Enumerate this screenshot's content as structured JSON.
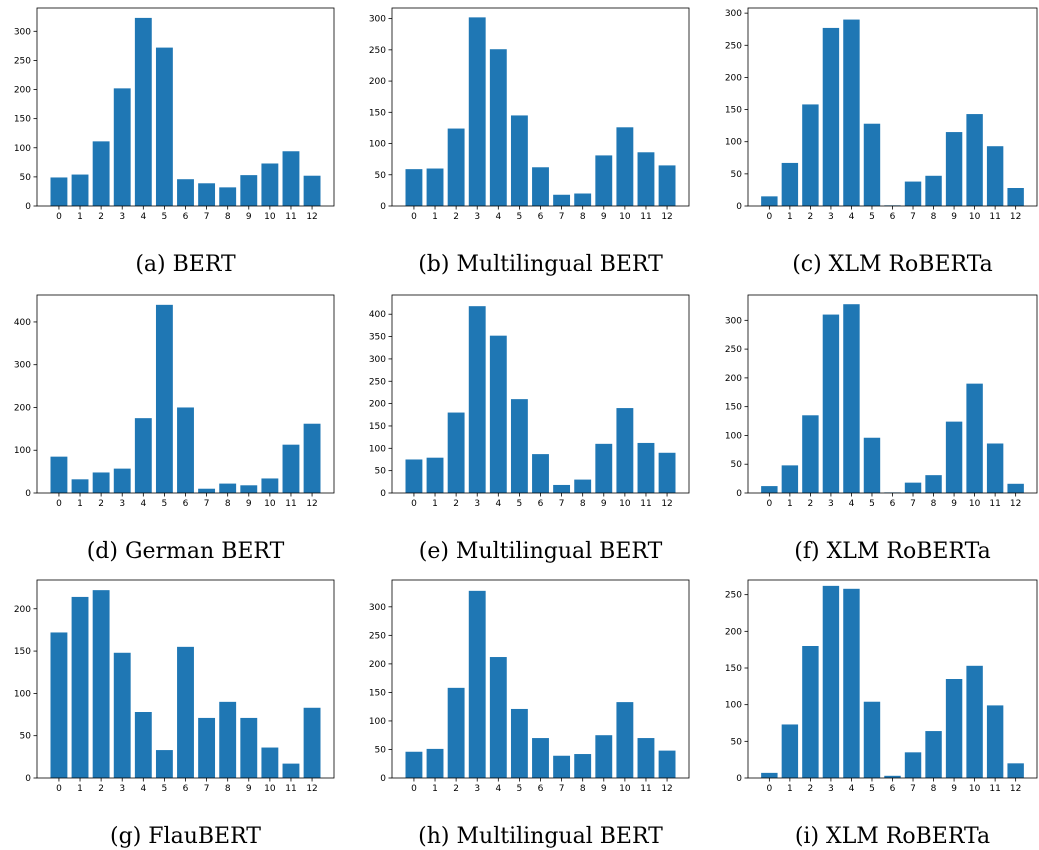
{
  "chart_data": [
    {
      "type": "bar",
      "caption": "(a) BERT",
      "color": "#1f77b4",
      "categories": [
        "0",
        "1",
        "2",
        "3",
        "4",
        "5",
        "6",
        "7",
        "8",
        "9",
        "10",
        "11",
        "12"
      ],
      "values": [
        49,
        54,
        111,
        202,
        323,
        272,
        46,
        39,
        32,
        53,
        73,
        94,
        52
      ],
      "ylim": [
        0,
        340
      ],
      "yticks": [
        0,
        50,
        100,
        150,
        200,
        250,
        300
      ]
    },
    {
      "type": "bar",
      "caption": "(b) Multilingual BERT",
      "color": "#1f77b4",
      "categories": [
        "0",
        "1",
        "2",
        "3",
        "4",
        "5",
        "6",
        "7",
        "8",
        "9",
        "10",
        "11",
        "12"
      ],
      "values": [
        59,
        60,
        124,
        302,
        251,
        145,
        62,
        18,
        20,
        81,
        126,
        86,
        65
      ],
      "ylim": [
        0,
        317
      ],
      "yticks": [
        0,
        50,
        100,
        150,
        200,
        250,
        300
      ]
    },
    {
      "type": "bar",
      "caption": "(c) XLM RoBERTa",
      "color": "#1f77b4",
      "categories": [
        "0",
        "1",
        "2",
        "3",
        "4",
        "5",
        "6",
        "7",
        "8",
        "9",
        "10",
        "11",
        "12"
      ],
      "values": [
        15,
        67,
        158,
        277,
        290,
        128,
        1,
        38,
        47,
        115,
        143,
        93,
        28
      ],
      "ylim": [
        0,
        308
      ],
      "yticks": [
        0,
        50,
        100,
        150,
        200,
        250,
        300
      ]
    },
    {
      "type": "bar",
      "caption": "(d) German BERT",
      "color": "#1f77b4",
      "categories": [
        "0",
        "1",
        "2",
        "3",
        "4",
        "5",
        "6",
        "7",
        "8",
        "9",
        "10",
        "11",
        "12"
      ],
      "values": [
        85,
        32,
        48,
        57,
        175,
        440,
        200,
        10,
        22,
        18,
        34,
        113,
        162
      ],
      "ylim": [
        0,
        463
      ],
      "yticks": [
        0,
        100,
        200,
        300,
        400
      ]
    },
    {
      "type": "bar",
      "caption": "(e) Multilingual BERT",
      "color": "#1f77b4",
      "categories": [
        "0",
        "1",
        "2",
        "3",
        "4",
        "5",
        "6",
        "7",
        "8",
        "9",
        "10",
        "11",
        "12"
      ],
      "values": [
        75,
        79,
        180,
        418,
        352,
        210,
        87,
        18,
        30,
        110,
        190,
        112,
        90
      ],
      "ylim": [
        0,
        443
      ],
      "yticks": [
        0,
        50,
        100,
        150,
        200,
        250,
        300,
        350,
        400
      ]
    },
    {
      "type": "bar",
      "caption": "(f) XLM RoBERTa",
      "color": "#1f77b4",
      "categories": [
        "0",
        "1",
        "2",
        "3",
        "4",
        "5",
        "6",
        "7",
        "8",
        "9",
        "10",
        "11",
        "12"
      ],
      "values": [
        12,
        48,
        135,
        310,
        328,
        96,
        1,
        18,
        31,
        124,
        190,
        86,
        16
      ],
      "ylim": [
        0,
        344
      ],
      "yticks": [
        0,
        50,
        100,
        150,
        200,
        250,
        300
      ]
    },
    {
      "type": "bar",
      "caption": "(g) FlauBERT",
      "color": "#1f77b4",
      "categories": [
        "0",
        "1",
        "2",
        "3",
        "4",
        "5",
        "6",
        "7",
        "8",
        "9",
        "10",
        "11",
        "12"
      ],
      "values": [
        172,
        214,
        222,
        148,
        78,
        33,
        155,
        71,
        90,
        71,
        36,
        17,
        83
      ],
      "ylim": [
        0,
        234
      ],
      "yticks": [
        0,
        50,
        100,
        150,
        200
      ]
    },
    {
      "type": "bar",
      "caption": "(h) Multilingual BERT",
      "color": "#1f77b4",
      "categories": [
        "0",
        "1",
        "2",
        "3",
        "4",
        "5",
        "6",
        "7",
        "8",
        "9",
        "10",
        "11",
        "12"
      ],
      "values": [
        46,
        51,
        158,
        328,
        212,
        121,
        70,
        39,
        42,
        75,
        133,
        70,
        48
      ],
      "ylim": [
        0,
        347
      ],
      "yticks": [
        0,
        50,
        100,
        150,
        200,
        250,
        300
      ]
    },
    {
      "type": "bar",
      "caption": "(i) XLM RoBERTa",
      "color": "#1f77b4",
      "categories": [
        "0",
        "1",
        "2",
        "3",
        "4",
        "5",
        "6",
        "7",
        "8",
        "9",
        "10",
        "11",
        "12"
      ],
      "values": [
        7,
        73,
        180,
        262,
        258,
        104,
        3,
        35,
        64,
        135,
        153,
        99,
        20
      ],
      "ylim": [
        0,
        270
      ],
      "yticks": [
        0,
        50,
        100,
        150,
        200,
        250
      ]
    }
  ]
}
